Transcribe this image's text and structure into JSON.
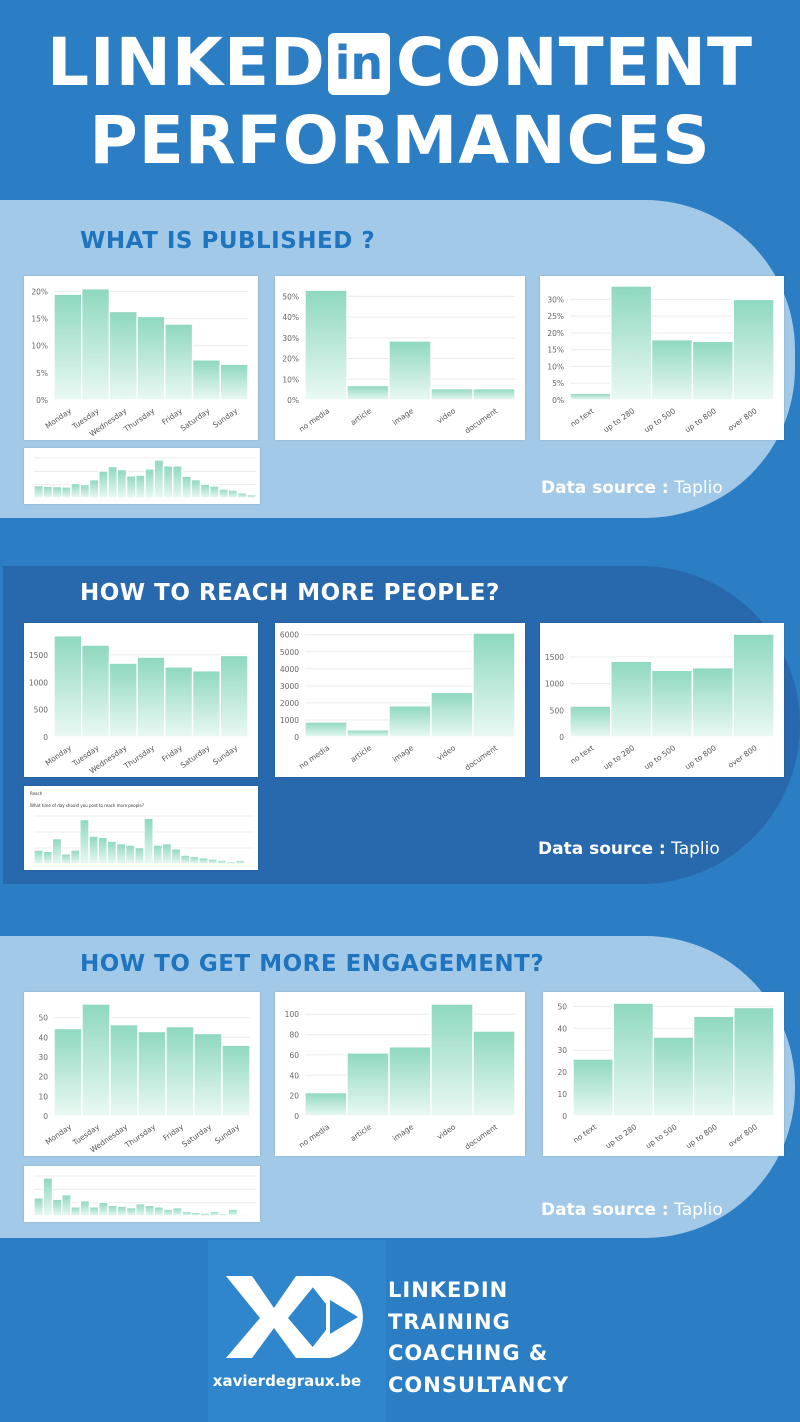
{
  "header": {
    "title_word1": "LINKED",
    "title_badge": "in",
    "title_word2": "CONTENT",
    "title_line2": "PERFORMANCES"
  },
  "colors": {
    "background": "#2c7ec4",
    "band_light": "#a2c9e8",
    "band_dark": "#2868ad",
    "bar_top": "#8ed8bf",
    "bar_bottom": "#eaf9f3",
    "section_title_light": "#1e74be"
  },
  "sections": [
    {
      "title": "WHAT IS PUBLISHED ?",
      "source_label": "Data source :",
      "source_value": "Taplio"
    },
    {
      "title": "HOW TO REACH MORE PEOPLE?",
      "source_label": "Data source :",
      "source_value": "Taplio"
    },
    {
      "title": "HOW TO GET MORE ENGAGEMENT?",
      "source_label": "Data source :",
      "source_value": "Taplio"
    }
  ],
  "chart_data": [
    {
      "id": "pub-days",
      "type": "bar",
      "categories": [
        "Monday",
        "Tuesday",
        "Wednesday",
        "Thursday",
        "Friday",
        "Saturday",
        "Sunday"
      ],
      "values": [
        19.5,
        20.5,
        16.3,
        15.4,
        14,
        7.4,
        6.6
      ],
      "ylim": [
        0,
        21
      ],
      "yticks": [
        0,
        5,
        10,
        15,
        20
      ],
      "ytick_labels": [
        "0%",
        "5%",
        "10%",
        "15%",
        "20%"
      ]
    },
    {
      "id": "pub-media",
      "type": "bar",
      "categories": [
        "no media",
        "article",
        "image",
        "video",
        "document"
      ],
      "values": [
        53,
        7,
        28.5,
        5.5,
        5.5
      ],
      "ylim": [
        0,
        55
      ],
      "yticks": [
        0,
        10,
        20,
        30,
        40,
        50
      ],
      "ytick_labels": [
        "0%",
        "10%",
        "20%",
        "30%",
        "40%",
        "50%"
      ]
    },
    {
      "id": "pub-length",
      "type": "bar",
      "categories": [
        "no text",
        "up to 280",
        "up to 500",
        "up to 800",
        "over 800"
      ],
      "values": [
        2,
        34,
        18,
        17.5,
        30
      ],
      "ylim": [
        0,
        34
      ],
      "yticks": [
        0,
        5,
        10,
        15,
        20,
        25,
        30
      ],
      "ytick_labels": [
        "0%",
        "5%",
        "10%",
        "15%",
        "20%",
        "25%",
        "30%"
      ]
    },
    {
      "id": "pub-hours",
      "type": "bar",
      "mini": true,
      "values": [
        3.6,
        3.4,
        3.3,
        3.2,
        4.2,
        3.9,
        5.3,
        7.8,
        9.1,
        8.2,
        6.4,
        6.6,
        8.4,
        11,
        9.3,
        9.3,
        6.3,
        5.3,
        4,
        3.5,
        2.6,
        2.3,
        1.5,
        1
      ]
    },
    {
      "id": "reach-days",
      "type": "bar",
      "categories": [
        "Monday",
        "Tuesday",
        "Wednesday",
        "Thursday",
        "Friday",
        "Saturday",
        "Sunday"
      ],
      "values": [
        1850,
        1680,
        1350,
        1460,
        1280,
        1210,
        1490
      ],
      "ylim": [
        0,
        1900
      ],
      "yticks": [
        0,
        500,
        1000,
        1500
      ],
      "ytick_labels": [
        "0",
        "500",
        "1000",
        "1500"
      ]
    },
    {
      "id": "reach-media",
      "type": "bar",
      "categories": [
        "no media",
        "article",
        "image",
        "video",
        "document"
      ],
      "values": [
        880,
        420,
        1830,
        2620,
        6100
      ],
      "ylim": [
        0,
        6100
      ],
      "yticks": [
        0,
        1000,
        2000,
        3000,
        4000,
        5000,
        6000
      ],
      "ytick_labels": [
        "0",
        "1000",
        "2000",
        "3000",
        "4000",
        "5000",
        "6000"
      ]
    },
    {
      "id": "reach-length",
      "type": "bar",
      "categories": [
        "no text",
        "up to 280",
        "up to 500",
        "up to 800",
        "over 800"
      ],
      "values": [
        580,
        1420,
        1250,
        1300,
        1930
      ],
      "ylim": [
        0,
        1950
      ],
      "yticks": [
        0,
        500,
        1000,
        1500
      ],
      "ytick_labels": [
        "0",
        "500",
        "1000",
        "1500"
      ]
    },
    {
      "id": "reach-hours",
      "type": "bar",
      "mini": true,
      "mini_title": "Reach",
      "mini_subtitle": "What time of day should you post to reach more people?",
      "values": [
        1100,
        1000,
        2000,
        800,
        1100,
        3500,
        2200,
        2100,
        1800,
        1600,
        1500,
        1300,
        3600,
        1500,
        1600,
        1200,
        700,
        600,
        500,
        400,
        300,
        200,
        300,
        100
      ]
    },
    {
      "id": "eng-days",
      "type": "bar",
      "categories": [
        "Monday",
        "Tuesday",
        "Wednesday",
        "Thursday",
        "Friday",
        "Saturday",
        "Sunday"
      ],
      "values": [
        44.5,
        57,
        46.5,
        43,
        45.5,
        42,
        36
      ],
      "ylim": [
        0,
        58
      ],
      "yticks": [
        0,
        10,
        20,
        30,
        40,
        50
      ],
      "ytick_labels": [
        "0",
        "10",
        "20",
        "30",
        "40",
        "50"
      ]
    },
    {
      "id": "eng-media",
      "type": "bar",
      "categories": [
        "no media",
        "article",
        "image",
        "video",
        "document"
      ],
      "values": [
        23,
        62,
        68,
        110,
        83.5
      ],
      "ylim": [
        0,
        112
      ],
      "yticks": [
        0,
        20,
        40,
        60,
        80,
        100
      ],
      "ytick_labels": [
        "0",
        "20",
        "40",
        "60",
        "80",
        "100"
      ]
    },
    {
      "id": "eng-length",
      "type": "bar",
      "categories": [
        "no text",
        "up to 280",
        "up to 500",
        "up to 800",
        "over 800"
      ],
      "values": [
        26,
        51.5,
        36,
        45.5,
        49.5
      ],
      "ylim": [
        0,
        52
      ],
      "yticks": [
        0,
        10,
        20,
        30,
        40,
        50
      ],
      "ytick_labels": [
        "0",
        "10",
        "20",
        "30",
        "40",
        "50"
      ]
    },
    {
      "id": "eng-hours",
      "type": "bar",
      "mini": true,
      "values": [
        120,
        250,
        110,
        140,
        60,
        100,
        60,
        90,
        70,
        65,
        55,
        80,
        70,
        60,
        45,
        55,
        30,
        25,
        20,
        30,
        15,
        45,
        10,
        5
      ]
    }
  ],
  "footer": {
    "logo": "XD",
    "site": "xavierdegraux.be",
    "tagline": [
      "LINKEDIN",
      "TRAINING",
      "COACHING &",
      "CONSULTANCY"
    ]
  }
}
